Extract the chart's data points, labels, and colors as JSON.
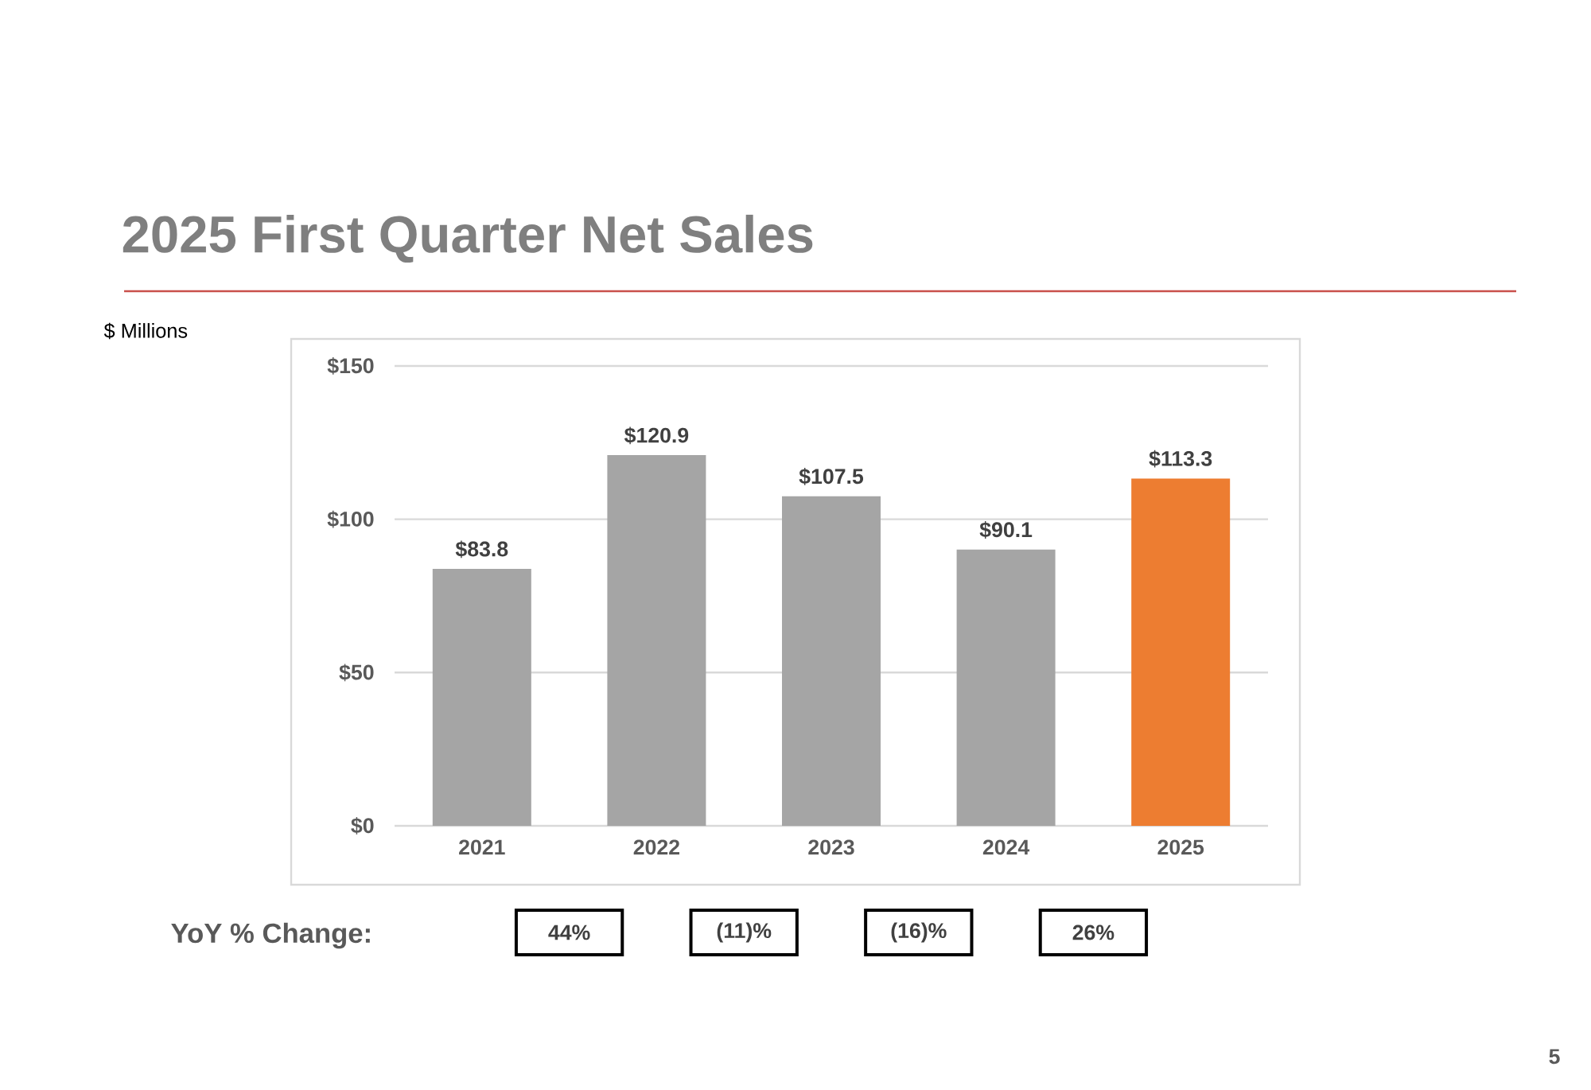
{
  "chart_data": {
    "type": "bar",
    "title": "2025 First Quarter Net Sales",
    "categories": [
      "2021",
      "2022",
      "2023",
      "2024",
      "2025"
    ],
    "values": [
      83.8,
      120.9,
      107.5,
      90.1,
      113.3
    ],
    "colors": [
      "#a5a5a5",
      "#a5a5a5",
      "#a5a5a5",
      "#a5a5a5",
      "#ed7d31"
    ],
    "value_labels": [
      "$83.8",
      "$120.9",
      "$107.5",
      "$90.1",
      "$113.3"
    ],
    "ylim": [
      0,
      150
    ],
    "yticks": [
      {
        "value": 0,
        "label": "$0"
      },
      {
        "value": 50,
        "label": "$50"
      },
      {
        "value": 100,
        "label": "$100"
      },
      {
        "value": 150,
        "label": "$150"
      }
    ],
    "grid": "y",
    "annotations": [
      "$ Millions",
      "YoY % Change:",
      "44%",
      "(11)%",
      "(16)%",
      "26%",
      "5"
    ]
  }
}
